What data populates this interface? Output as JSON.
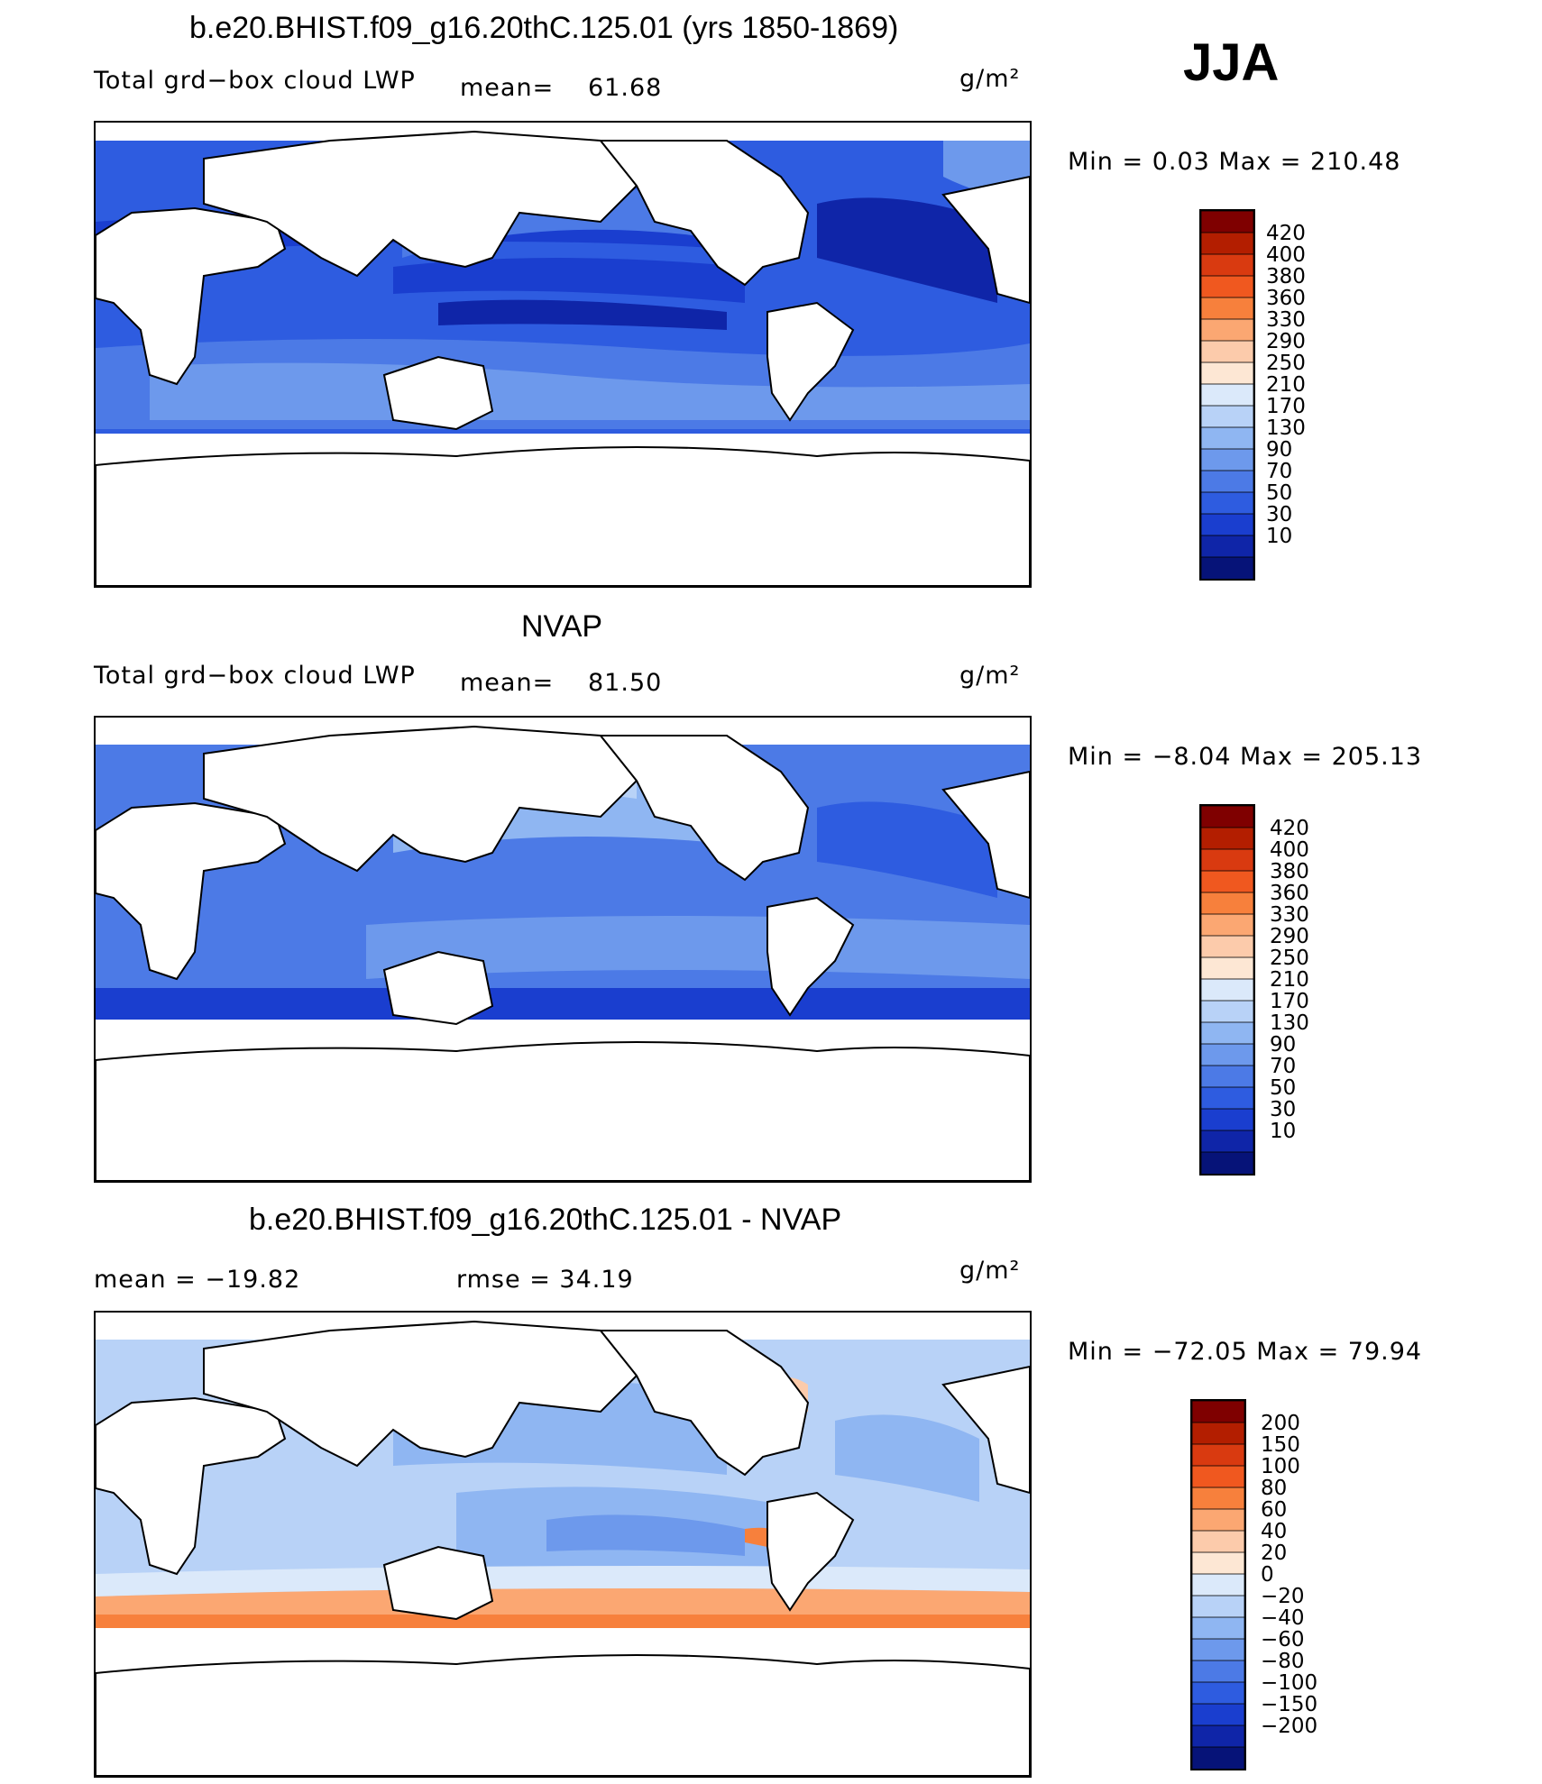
{
  "season": "JJA",
  "panels": [
    {
      "title": "b.e20.BHIST.f09_g16.20thC.125.01 (yrs 1850-1869)",
      "left_label": "Total grd−box cloud LWP",
      "mean_label": "mean=",
      "mean_value": "61.68",
      "units": "g/m²",
      "minmax": "Min =    0.03 Max = 210.48",
      "colorbar_labels": [
        "420",
        "400",
        "380",
        "360",
        "330",
        "290",
        "250",
        "210",
        "170",
        "130",
        "90",
        "70",
        "50",
        "30",
        "10"
      ]
    },
    {
      "title": "NVAP",
      "left_label": "Total grd−box cloud LWP",
      "mean_label": "mean=",
      "mean_value": "81.50",
      "units": "g/m²",
      "minmax": "Min =   −8.04 Max = 205.13",
      "colorbar_labels": [
        "420",
        "400",
        "380",
        "360",
        "330",
        "290",
        "250",
        "210",
        "170",
        "130",
        "90",
        "70",
        "50",
        "30",
        "10"
      ]
    },
    {
      "title": "b.e20.BHIST.f09_g16.20thC.125.01 - NVAP",
      "mean_text": "mean = −19.82",
      "rmse_text": "rmse =   34.19",
      "units": "g/m²",
      "minmax": "Min = −72.05 Max =  79.94",
      "colorbar_labels": [
        "200",
        "150",
        "100",
        "80",
        "60",
        "40",
        "20",
        "0",
        "−20",
        "−40",
        "−60",
        "−80",
        "−100",
        "−150",
        "−200"
      ]
    }
  ],
  "colors": {
    "colorbar": [
      "#7f0000",
      "#b31e00",
      "#d93a10",
      "#f0581f",
      "#f7803c",
      "#fba772",
      "#fccbab",
      "#fde7d4",
      "#dbe9fa",
      "#b8d2f7",
      "#8fb6f2",
      "#6d99ec",
      "#4c7ae6",
      "#2e5ce0",
      "#1a3ecf",
      "#0f25a8",
      "#061378"
    ],
    "land": "#ffffff",
    "coast": "#000000"
  }
}
